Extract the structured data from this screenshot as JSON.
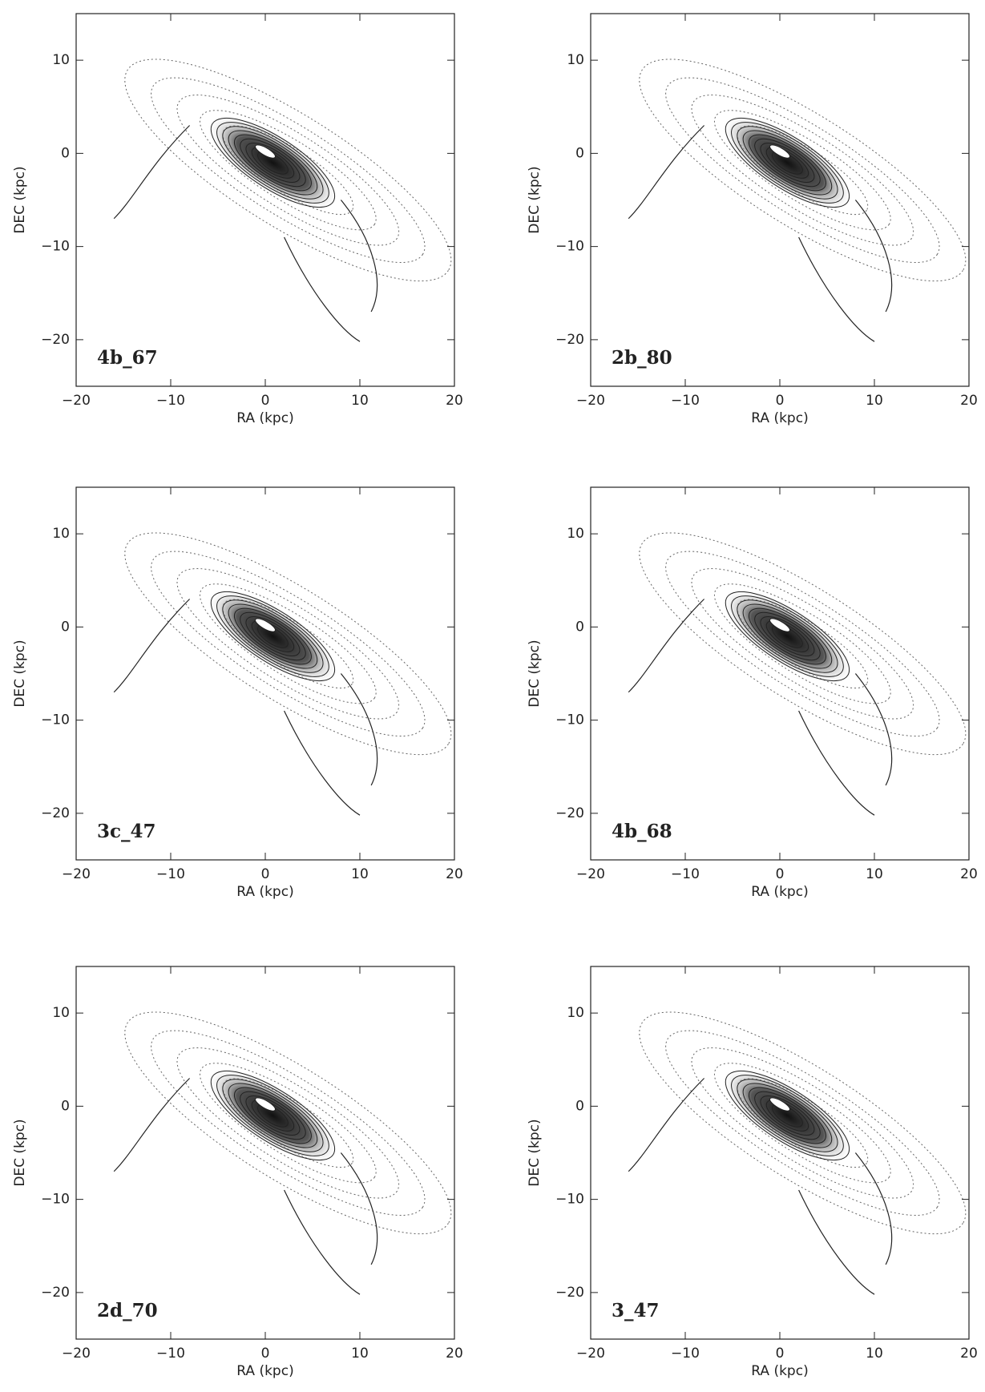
{
  "chart_data": [
    {
      "type": "contour",
      "title": "4b_67",
      "xlabel": "RA (kpc)",
      "ylabel": "DEC (kpc)",
      "xlim": [
        -20,
        20
      ],
      "ylim": [
        -25,
        15
      ],
      "xticks": [
        -20,
        -10,
        0,
        10,
        20
      ],
      "yticks": [
        -20,
        -10,
        0,
        10
      ]
    },
    {
      "type": "contour",
      "title": "2b_80",
      "xlabel": "RA (kpc)",
      "ylabel": "DEC (kpc)",
      "xlim": [
        -20,
        20
      ],
      "ylim": [
        -25,
        15
      ],
      "xticks": [
        -20,
        -10,
        0,
        10,
        20
      ],
      "yticks": [
        -20,
        -10,
        0,
        10
      ]
    },
    {
      "type": "contour",
      "title": "3c_47",
      "xlabel": "RA (kpc)",
      "ylabel": "DEC (kpc)",
      "xlim": [
        -20,
        20
      ],
      "ylim": [
        -25,
        15
      ],
      "xticks": [
        -20,
        -10,
        0,
        10,
        20
      ],
      "yticks": [
        -20,
        -10,
        0,
        10
      ]
    },
    {
      "type": "contour",
      "title": "4b_68",
      "xlabel": "RA (kpc)",
      "ylabel": "DEC (kpc)",
      "xlim": [
        -20,
        20
      ],
      "ylim": [
        -25,
        15
      ],
      "xticks": [
        -20,
        -10,
        0,
        10,
        20
      ],
      "yticks": [
        -20,
        -10,
        0,
        10
      ]
    },
    {
      "type": "contour",
      "title": "2d_70",
      "xlabel": "RA (kpc)",
      "ylabel": "DEC (kpc)",
      "xlim": [
        -20,
        20
      ],
      "ylim": [
        -25,
        15
      ],
      "xticks": [
        -20,
        -10,
        0,
        10,
        20
      ],
      "yticks": [
        -20,
        -10,
        0,
        10
      ]
    },
    {
      "type": "contour",
      "title": "3_47",
      "xlabel": "RA (kpc)",
      "ylabel": "DEC (kpc)",
      "xlim": [
        -20,
        20
      ],
      "ylim": [
        -25,
        15
      ],
      "xticks": [
        -20,
        -10,
        0,
        10,
        20
      ],
      "yticks": [
        -20,
        -10,
        0,
        10
      ]
    }
  ]
}
